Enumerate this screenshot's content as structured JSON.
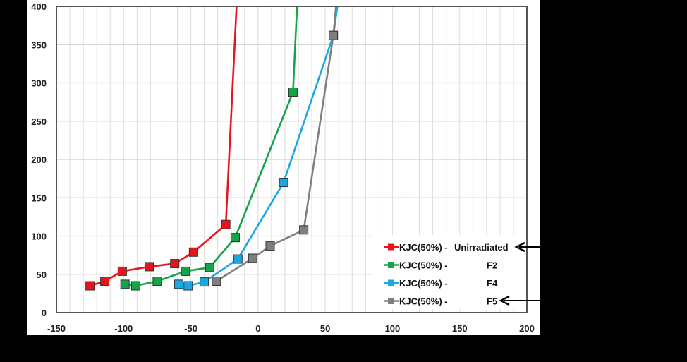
{
  "chart_data": {
    "type": "line",
    "title": "",
    "xlabel": "",
    "ylabel": "",
    "xlim": [
      -150,
      200
    ],
    "ylim": [
      0,
      400
    ],
    "x_ticks": [
      "-150",
      "-100",
      "-50",
      "0",
      "50",
      "100",
      "150",
      "200"
    ],
    "y_ticks": [
      "0",
      "50",
      "100",
      "150",
      "200",
      "250",
      "300",
      "350",
      "400"
    ],
    "grid": true,
    "legend_position": "lower right inside",
    "marker": "square",
    "series": [
      {
        "name": "KJC(50%) - Unirradiated",
        "legend_prefix": "KJC(50%) - ",
        "legend_suffix": "Unirradiated",
        "color": "#e8141c",
        "x": [
          -125,
          -114,
          -101,
          -81,
          -62,
          -48,
          -24,
          -16
        ],
        "y": [
          35,
          41,
          54,
          60,
          64,
          79,
          115,
          400
        ],
        "marked": [
          true,
          true,
          true,
          true,
          true,
          true,
          true,
          false
        ]
      },
      {
        "name": "KJC(50%) - F2",
        "legend_prefix": "KJC(50%) - ",
        "legend_suffix": "F2",
        "color": "#16a34a",
        "x": [
          -99,
          -91,
          -75,
          -54,
          -36,
          -17,
          26,
          29
        ],
        "y": [
          37,
          35,
          41,
          54,
          59,
          98,
          288,
          400
        ],
        "marked": [
          true,
          true,
          true,
          true,
          true,
          true,
          true,
          false
        ]
      },
      {
        "name": "KJC(50%) - F4",
        "legend_prefix": "KJC(50%) - ",
        "legend_suffix": "F4",
        "color": "#1ba8e0",
        "x": [
          -59,
          -52,
          -40,
          -15,
          19,
          56,
          59
        ],
        "y": [
          37,
          35,
          40,
          70,
          170,
          362,
          400
        ],
        "marked": [
          true,
          true,
          true,
          true,
          true,
          true,
          false
        ]
      },
      {
        "name": "KJC(50%) - F5",
        "legend_prefix": "KJC(50%) - ",
        "legend_suffix": "F5",
        "color": "#7f7f7f",
        "x": [
          -31,
          -4,
          9,
          34,
          56,
          58
        ],
        "y": [
          41,
          71,
          87,
          108,
          362,
          400
        ],
        "marked": [
          true,
          true,
          true,
          true,
          true,
          false
        ]
      }
    ],
    "annotations": [
      {
        "type": "arrow",
        "points_to": "KJC(50%) - Unirradiated"
      },
      {
        "type": "arrow",
        "points_to": "KJC(50%) - F5"
      }
    ]
  }
}
